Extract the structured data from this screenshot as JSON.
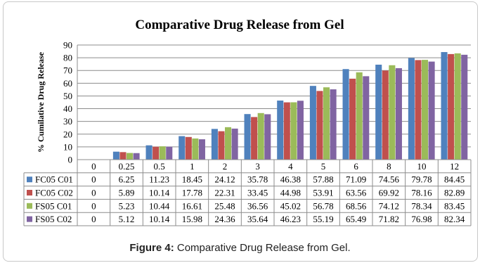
{
  "caption": {
    "label": "Figure 4:",
    "text": " Comparative Drug Release from Gel."
  },
  "chart_data": {
    "type": "bar",
    "title": "Comparative Drug Release from Gel",
    "ylabel": "% Cumilative Drug Release",
    "xlabel": "",
    "ylim": [
      0,
      90
    ],
    "yticks": [
      0,
      10,
      20,
      30,
      40,
      50,
      60,
      70,
      80,
      90
    ],
    "grid": true,
    "legend": "data-table",
    "categories": [
      "0",
      "0.25",
      "0.5",
      "1",
      "2",
      "3",
      "4",
      "5",
      "6",
      "8",
      "10",
      "12"
    ],
    "series": [
      {
        "name": "FC05 C01",
        "color": "#4f81bd",
        "values": [
          0,
          6.25,
          11.23,
          18.45,
          24.12,
          35.78,
          46.38,
          57.88,
          71.09,
          74.56,
          79.78,
          84.45
        ]
      },
      {
        "name": "FC05 C02",
        "color": "#c0504d",
        "values": [
          0,
          5.89,
          10.14,
          17.78,
          22.31,
          33.45,
          44.98,
          53.91,
          63.56,
          69.92,
          78.16,
          82.89
        ]
      },
      {
        "name": "FS05 C01",
        "color": "#9bbb59",
        "values": [
          0,
          5.23,
          10.44,
          16.61,
          25.48,
          36.56,
          45.02,
          56.78,
          68.56,
          74.12,
          78.34,
          83.45
        ]
      },
      {
        "name": "FS05 C02",
        "color": "#8064a2",
        "values": [
          0,
          5.12,
          10.14,
          15.98,
          24.36,
          35.64,
          46.23,
          55.19,
          65.49,
          71.82,
          76.98,
          82.34
        ]
      }
    ]
  }
}
